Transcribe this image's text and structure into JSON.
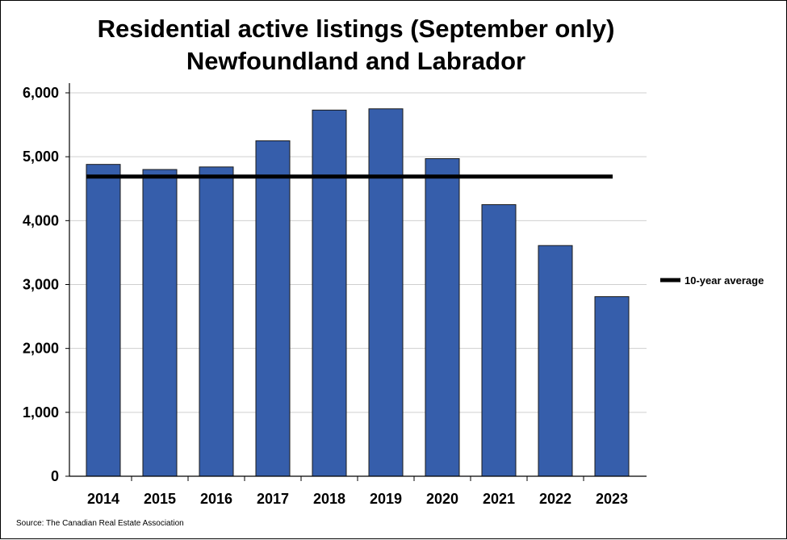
{
  "chart_data": {
    "type": "bar",
    "title": "Residential active listings (September only)",
    "subtitle": "Newfoundland and Labrador",
    "categories": [
      "2014",
      "2015",
      "2016",
      "2017",
      "2018",
      "2019",
      "2020",
      "2021",
      "2022",
      "2023"
    ],
    "series": [
      {
        "values": [
          4880,
          4800,
          4840,
          5250,
          5730,
          5750,
          4970,
          4250,
          3610,
          2810
        ],
        "color": "#365EAB"
      }
    ],
    "reference_line": {
      "name": "10-year average",
      "value": 4690,
      "color": "#000000"
    },
    "ylim": [
      0,
      6000
    ],
    "yticks": [
      0,
      1000,
      2000,
      3000,
      4000,
      5000,
      6000
    ],
    "ytick_labels": [
      "0",
      "1,000",
      "2,000",
      "3,000",
      "4,000",
      "5,000",
      "6,000"
    ],
    "grid": true,
    "legend_position": "right",
    "source": "Source: The Canadian Real Estate Association"
  }
}
